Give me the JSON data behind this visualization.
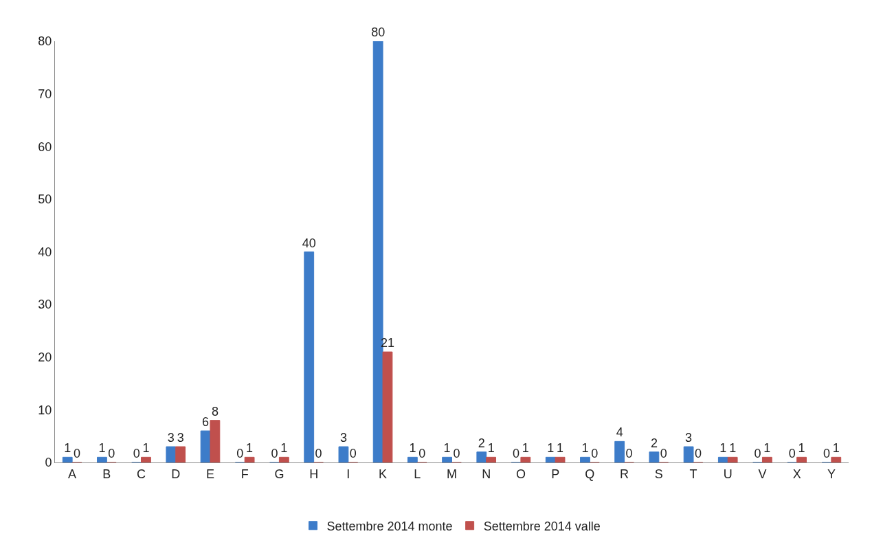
{
  "chart_data": {
    "type": "bar",
    "categories": [
      "A",
      "B",
      "C",
      "D",
      "E",
      "F",
      "G",
      "H",
      "I",
      "K",
      "L",
      "M",
      "N",
      "O",
      "P",
      "Q",
      "R",
      "S",
      "T",
      "U",
      "V",
      "X",
      "Y"
    ],
    "series": [
      {
        "name": "Settembre 2014 monte",
        "color": "#3d7cc9",
        "values": [
          1,
          1,
          0,
          3,
          6,
          0,
          0,
          40,
          3,
          80,
          1,
          1,
          2,
          0,
          1,
          1,
          4,
          2,
          3,
          1,
          0,
          0,
          0
        ]
      },
      {
        "name": "Settembre 2014 valle",
        "color": "#c0504d",
        "values": [
          0,
          0,
          1,
          3,
          8,
          1,
          1,
          0,
          0,
          21,
          0,
          0,
          1,
          1,
          1,
          0,
          0,
          0,
          0,
          1,
          1,
          1,
          1
        ]
      }
    ],
    "ylim": [
      0,
      80
    ],
    "yticks": [
      0,
      10,
      20,
      30,
      40,
      50,
      60,
      70,
      80
    ],
    "data_labels": true,
    "grid": false,
    "legend": "bottom"
  }
}
